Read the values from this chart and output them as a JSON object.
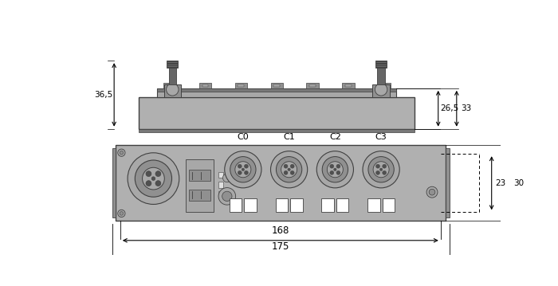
{
  "bg_color": "#ffffff",
  "body_gray": "#b0b0b0",
  "body_gray2": "#a8a8a8",
  "dark_strip": "#787878",
  "darker": "#404040",
  "mid_gray": "#909090",
  "light_body": "#c0c0c0",
  "top_view": {
    "dim_36_5": "36,5",
    "dim_26_5": "26,5",
    "dim_33": "33"
  },
  "front_view": {
    "labels": [
      "C0",
      "C1",
      "C2",
      "C3"
    ],
    "dim_23": "23",
    "dim_30": "30",
    "dim_168": "168",
    "dim_175": "175"
  }
}
